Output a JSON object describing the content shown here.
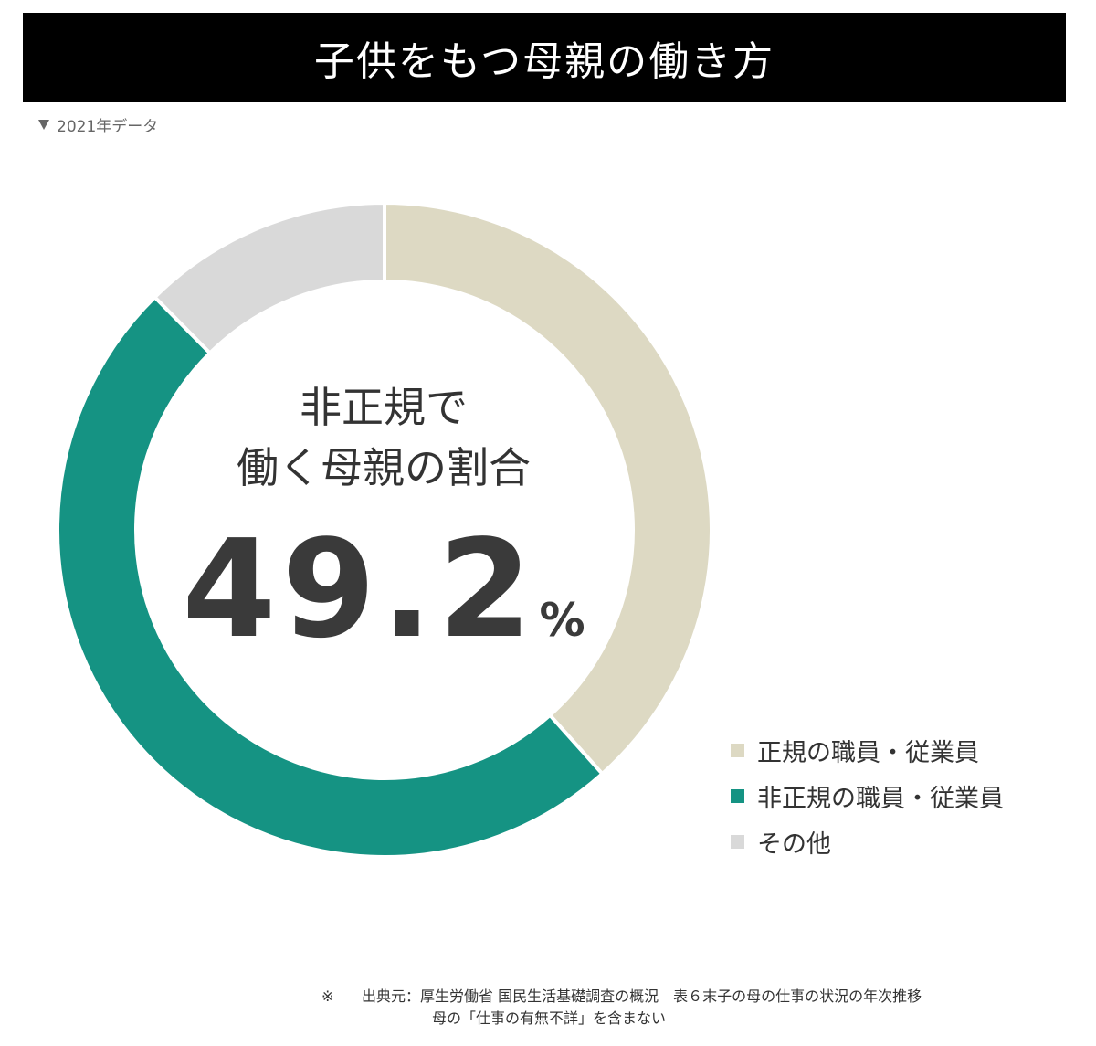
{
  "header": {
    "title": "子供をもつ母親の働き方",
    "subtitle": "2021年データ"
  },
  "colors": {
    "regular": "#ddd9c3",
    "non_regular": "#159383",
    "other": "#d9d9d9",
    "title_bar": "#000000"
  },
  "center": {
    "line1": "非正規で",
    "line2": "働く母親の割合",
    "value": "49.2",
    "unit": "%"
  },
  "chart_data": {
    "type": "pie",
    "categories": [
      "正規の職員・従業員",
      "非正規の職員・従業員",
      "その他"
    ],
    "values": [
      38.4,
      49.2,
      12.4
    ],
    "unit": "%",
    "legend_position": "bottom-right"
  },
  "footnote": {
    "mark": "※",
    "line1": "出典元：厚生労働省 国民生活基礎調査の概況　表６末子の母の仕事の状況の年次推移",
    "line2": "母の「仕事の有無不詳」を含まない"
  }
}
